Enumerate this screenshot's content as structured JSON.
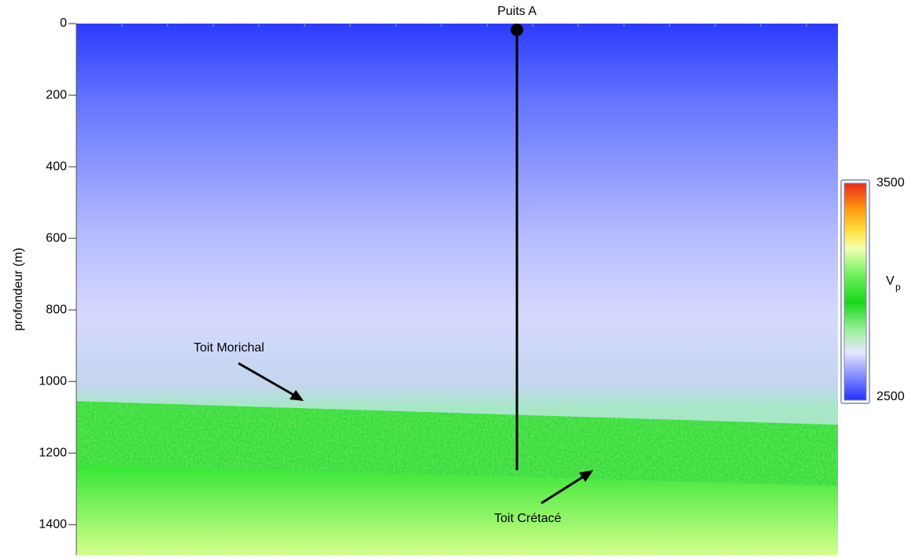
{
  "chart_data": {
    "type": "section",
    "y_label": "profondeur (m)",
    "ylim": [
      0,
      1485
    ],
    "yticks": [
      0,
      200,
      400,
      600,
      800,
      1000,
      1200,
      1400
    ],
    "well": {
      "name": "Puits A",
      "top": 0,
      "bottom": 1248
    },
    "horizons": [
      {
        "name": "Toit Morichal",
        "depths": [
          1055,
          1121
        ]
      },
      {
        "name": "Toit Crétacé",
        "depths": [
          1231,
          1292
        ]
      }
    ],
    "colorbar": {
      "min": 2500,
      "max": 3500,
      "label": "V",
      "label_sub": "p"
    }
  }
}
